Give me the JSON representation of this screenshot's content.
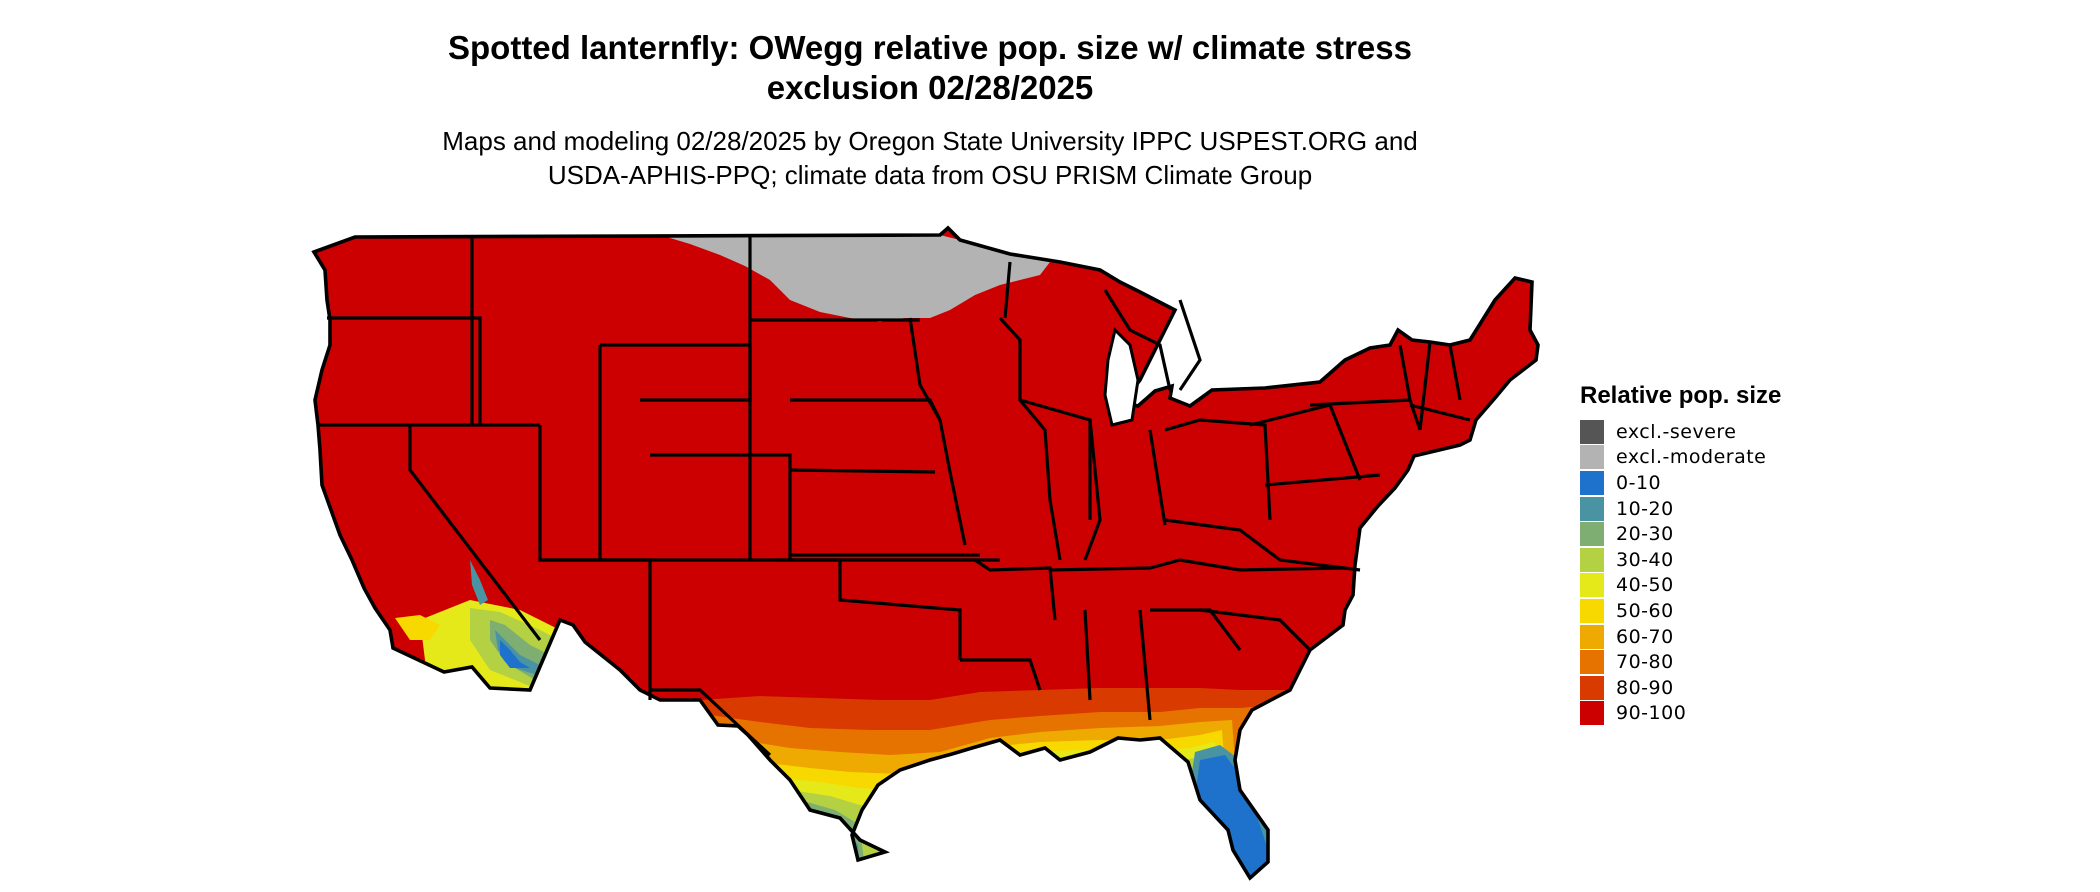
{
  "map": {
    "title_line1": "Spotted lanternfly: OWegg relative pop. size w/ climate stress",
    "title_line2": "exclusion 02/28/2025",
    "subtitle_line1": "Maps and modeling 02/28/2025 by Oregon State University IPPC USPEST.ORG and",
    "subtitle_line2": "USDA-APHIS-PPQ; climate data from OSU PRISM Climate Group",
    "region": "Contiguous United States",
    "dominant_category": "90-100",
    "excluded_moderate_region": "Northern Minnesota / North Dakota border",
    "low_value_regions": [
      "Southern Florida",
      "South Texas coast",
      "Southern Arizona / Southern California desert"
    ]
  },
  "legend": {
    "title": "Relative pop. size",
    "items": [
      {
        "label": "excl.-severe",
        "color": "#555555"
      },
      {
        "label": "excl.-moderate",
        "color": "#b3b3b3"
      },
      {
        "label": "0-10",
        "color": "#1f72cc"
      },
      {
        "label": "10-20",
        "color": "#4a93a3"
      },
      {
        "label": "20-30",
        "color": "#7fae72"
      },
      {
        "label": "30-40",
        "color": "#b4d144"
      },
      {
        "label": "40-50",
        "color": "#e5e91a"
      },
      {
        "label": "50-60",
        "color": "#f7d900"
      },
      {
        "label": "60-70",
        "color": "#eeaa00"
      },
      {
        "label": "70-80",
        "color": "#e67300"
      },
      {
        "label": "80-90",
        "color": "#d93a00"
      },
      {
        "label": "90-100",
        "color": "#cc0000"
      }
    ]
  },
  "colors": {
    "background": "#ffffff",
    "border": "#000000",
    "high": "#cc0000"
  }
}
